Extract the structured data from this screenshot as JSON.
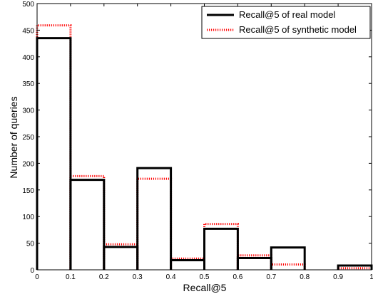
{
  "chart_data": {
    "type": "histogram",
    "xlabel": "Recall@5",
    "ylabel": "Number of queries",
    "xlim": [
      0,
      1
    ],
    "ylim": [
      0,
      500
    ],
    "xticks": [
      "0",
      "0.1",
      "0.2",
      "0.3",
      "0.4",
      "0.5",
      "0.6",
      "0.7",
      "0.8",
      "0.9",
      "1"
    ],
    "yticks": [
      "0",
      "50",
      "100",
      "150",
      "200",
      "250",
      "300",
      "350",
      "400",
      "450",
      "500"
    ],
    "bin_edges": [
      0,
      0.1,
      0.2,
      0.3,
      0.4,
      0.5,
      0.6,
      0.7,
      0.8,
      0.9,
      1.0
    ],
    "series": [
      {
        "name": "Recall@5 of real model",
        "values": [
          435,
          169,
          43,
          191,
          18,
          77,
          22,
          42,
          0,
          8
        ],
        "color": "#000000",
        "line_style": "solid"
      },
      {
        "name": "Recall@5 of synthetic model",
        "values": [
          459,
          176,
          48,
          171,
          21,
          86,
          27,
          10,
          0,
          3
        ],
        "color": "#ff0000",
        "line_style": "dotted"
      }
    ],
    "legend_position": "top-right",
    "grid": false
  }
}
